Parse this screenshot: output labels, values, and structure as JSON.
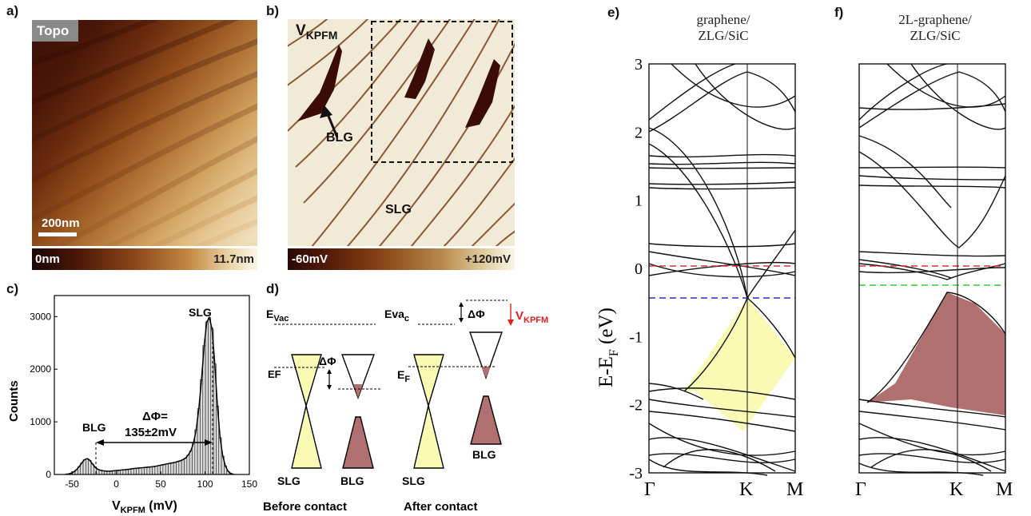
{
  "panels": {
    "a": {
      "label": "a)",
      "tag": "Topo",
      "scale_bar": "200nm",
      "colorbar_min": "0nm",
      "colorbar_max": "11.7nm"
    },
    "b": {
      "label": "b)",
      "title_main": "V",
      "title_sub": "KPFM",
      "bilayer_label": "BLG",
      "single_label": "SLG",
      "colorbar_min": "-60mV",
      "colorbar_max": "+120mV"
    },
    "c": {
      "label": "c)",
      "ylabel": "Counts",
      "xlabel_main": "V",
      "xlabel_sub": "KPFM",
      "xlabel_unit": " (mV)",
      "peak_slg": "SLG",
      "peak_blg": "BLG",
      "delta_line1": "ΔΦ=",
      "delta_line2": "135±2mV"
    },
    "d": {
      "label": "d)",
      "evac_main": "E",
      "evac_sub": "Vac",
      "evac2_main": "Eva",
      "evac2_sub": "c",
      "ef_left": "EF",
      "ef_right_main": "E",
      "ef_right_sub": "F",
      "delta_phi": "ΔΦ",
      "delta_phi2": "ΔΦ",
      "vkpfm_main": "V",
      "vkpfm_sub": "KPFM",
      "slg1": "SLG",
      "blg1": "BLG",
      "slg2": "SLG",
      "blg2": "BLG",
      "caption_before": "Before contact",
      "caption_after": "After contact"
    },
    "e": {
      "label": "e)",
      "title_line1": "graphene/",
      "title_line2": "ZLG/SiC",
      "ylabel_main": "E-E",
      "ylabel_sub": "F",
      "ylabel_unit": " (eV)",
      "kpoints": [
        "Γ",
        "K",
        "M"
      ]
    },
    "f": {
      "label": "f)",
      "title_line1": "2L-graphene/",
      "title_line2": "ZLG/SiC",
      "kpoints": [
        "Γ",
        "K",
        "M"
      ]
    }
  },
  "colors": {
    "fermi_line": "#e03030",
    "dirac_line_e": "#2030d0",
    "dirac_line_f": "#30d030",
    "slg_fill": "#fafab4",
    "blg_fill": "#b07070",
    "vkpfm_arrow": "#e02020"
  },
  "chart_data": [
    {
      "type": "bar",
      "title": "",
      "xlabel": "VKPFM (mV)",
      "ylabel": "Counts",
      "xlim": [
        -70,
        150
      ],
      "ylim": [
        0,
        3400
      ],
      "xticks": [
        -50,
        0,
        50,
        100,
        150
      ],
      "xtick_labels": [
        "-50",
        "0",
        "50",
        "100",
        "150"
      ],
      "yticks": [
        0,
        1000,
        2000,
        3000
      ],
      "ytick_labels": [
        "0",
        "1000",
        "2000",
        "3000"
      ],
      "annotations": [
        "SLG",
        "BLG",
        "ΔΦ= 135±2mV"
      ],
      "x": [
        -57,
        -54,
        -51,
        -48,
        -45,
        -42,
        -39,
        -36,
        -33,
        -30,
        -27,
        -24,
        -21,
        -18,
        -15,
        -12,
        -9,
        -6,
        -3,
        0,
        3,
        6,
        9,
        12,
        15,
        18,
        21,
        24,
        27,
        30,
        33,
        36,
        39,
        42,
        45,
        48,
        51,
        54,
        57,
        60,
        63,
        66,
        69,
        72,
        75,
        78,
        81,
        84,
        87,
        90,
        93,
        96,
        99,
        102,
        105,
        108,
        111,
        114,
        117,
        120,
        123,
        126,
        129,
        132
      ],
      "values": [
        5,
        10,
        25,
        50,
        90,
        150,
        220,
        280,
        300,
        270,
        200,
        140,
        100,
        80,
        70,
        65,
        60,
        65,
        70,
        75,
        80,
        85,
        90,
        95,
        100,
        110,
        115,
        120,
        125,
        130,
        135,
        140,
        145,
        150,
        160,
        170,
        180,
        190,
        200,
        210,
        220,
        230,
        245,
        260,
        280,
        310,
        370,
        450,
        600,
        850,
        1250,
        1800,
        2450,
        2900,
        2980,
        2750,
        2100,
        1300,
        700,
        350,
        160,
        60,
        20,
        5
      ]
    },
    {
      "type": "line",
      "title": "graphene/ ZLG/SiC",
      "xlabel": "",
      "ylabel": "E-EF (eV)",
      "ylim": [
        -3,
        3
      ],
      "xtick_labels": [
        "Γ",
        "K",
        "M"
      ],
      "ytick_labels": [
        "-3",
        "-2",
        "-1",
        "0",
        "1",
        "2",
        "3"
      ],
      "fermi_level": 0,
      "dirac_point": -0.45
    },
    {
      "type": "line",
      "title": "2L-graphene/ ZLG/SiC",
      "xlabel": "",
      "ylabel": "",
      "ylim": [
        -3,
        3
      ],
      "xtick_labels": [
        "Γ",
        "K",
        "M"
      ],
      "fermi_level": 0,
      "dirac_point": -0.28
    }
  ]
}
